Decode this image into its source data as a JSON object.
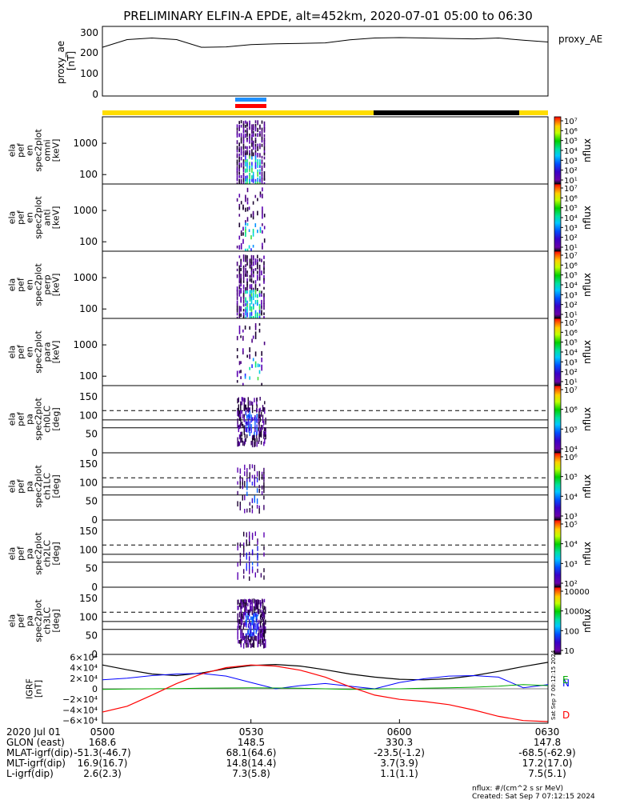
{
  "title": "PRELIMINARY ELFIN-A EPDE, alt=452km, 2020-07-01 05:00 to 06:30",
  "proxy_ae": {
    "ylabel": [
      "proxy_ae",
      "[nT]"
    ],
    "legend": "proxy_AE",
    "yticks": [
      "300",
      "200",
      "100",
      "0"
    ],
    "ylim": [
      0,
      300
    ],
    "x": [
      0,
      5,
      10,
      15,
      20,
      25,
      30,
      35,
      40,
      45,
      50,
      55,
      60,
      65,
      70,
      75,
      80,
      85,
      90
    ],
    "y": [
      220,
      255,
      262,
      255,
      220,
      222,
      232,
      236,
      238,
      240,
      254,
      262,
      264,
      262,
      260,
      258,
      262,
      252,
      244
    ]
  },
  "spectra": [
    {
      "ylabel": [
        "ela",
        "pef",
        "en",
        "spec2plot",
        "omni",
        "[keV]"
      ],
      "yticks": [
        "1000",
        "100"
      ],
      "ylim": [
        50,
        7000
      ],
      "scale": "log",
      "cblabel": "nflux",
      "cbticks": [
        "10⁷",
        "10⁶",
        "10⁵",
        "10⁴",
        "10³",
        "10²",
        "10¹"
      ]
    },
    {
      "ylabel": [
        "ela",
        "pef",
        "en",
        "spec2plot",
        "anti",
        "[keV]"
      ],
      "yticks": [
        "1000",
        "100"
      ],
      "ylim": [
        50,
        7000
      ],
      "scale": "log",
      "cblabel": "nflux",
      "cbticks": [
        "10⁷",
        "10⁶",
        "10⁵",
        "10⁴",
        "10³",
        "10²",
        "10¹"
      ]
    },
    {
      "ylabel": [
        "ela",
        "pef",
        "en",
        "spec2plot",
        "perp",
        "[keV]"
      ],
      "yticks": [
        "1000",
        "100"
      ],
      "ylim": [
        50,
        7000
      ],
      "scale": "log",
      "cblabel": "nflux",
      "cbticks": [
        "10⁷",
        "10⁶",
        "10⁵",
        "10⁴",
        "10³",
        "10²",
        "10¹"
      ]
    },
    {
      "ylabel": [
        "ela",
        "pef",
        "en",
        "spec2plot",
        "para",
        "[keV]"
      ],
      "yticks": [
        "1000",
        "100"
      ],
      "ylim": [
        50,
        7000
      ],
      "scale": "log",
      "cblabel": "nflux",
      "cbticks": [
        "10⁷",
        "10⁶",
        "10⁵",
        "10⁴",
        "10³",
        "10²",
        "10¹"
      ]
    }
  ],
  "pitch": [
    {
      "ylabel": [
        "ela",
        "pef",
        "pa",
        "spec2plot",
        "ch0LC",
        "[deg]"
      ],
      "yticks": [
        "150",
        "100",
        "50",
        "0"
      ],
      "cblabel": "nflux",
      "cbticks": [
        "10⁷",
        "10⁶",
        "10⁵",
        "10⁴"
      ]
    },
    {
      "ylabel": [
        "ela",
        "pef",
        "pa",
        "spec2plot",
        "ch1LC",
        "[deg]"
      ],
      "yticks": [
        "150",
        "100",
        "50",
        "0"
      ],
      "cblabel": "nflux",
      "cbticks": [
        "10⁶",
        "10⁵",
        "10⁴",
        "10³"
      ]
    },
    {
      "ylabel": [
        "ela",
        "pef",
        "pa",
        "spec2plot",
        "ch2LC",
        "[deg]"
      ],
      "yticks": [
        "150",
        "100",
        "50",
        "0"
      ],
      "cblabel": "nflux",
      "cbticks": [
        "10⁵",
        "10⁴",
        "10³",
        "10²"
      ]
    },
    {
      "ylabel": [
        "ela",
        "pef",
        "pa",
        "spec2plot",
        "ch3LC",
        "[deg]"
      ],
      "yticks": [
        "150",
        "100",
        "50",
        "0"
      ],
      "cblabel": "nflux",
      "cbticks": [
        "10000",
        "1000",
        "100",
        "10"
      ]
    }
  ],
  "bfield": {
    "ylabel": [
      "IGRF",
      "[nT]"
    ],
    "yticks": [
      "6×10⁴",
      "4×10⁴",
      "2×10⁴",
      "0",
      "−2×10⁴",
      "−4×10⁴",
      "−6×10⁴"
    ],
    "ylim": [
      -65000,
      65000
    ],
    "legend": [
      {
        "name": "N",
        "color": "#0000ff"
      },
      {
        "name": "E",
        "color": "#00aa00"
      },
      {
        "name": "D",
        "color": "#ff0000"
      }
    ],
    "side_text": "Sat Sep  7 00:12:15 2024",
    "x": [
      0,
      5,
      10,
      15,
      20,
      25,
      30,
      35,
      40,
      45,
      50,
      55,
      60,
      65,
      70,
      75,
      80,
      85,
      90
    ],
    "total": [
      45000,
      36000,
      28000,
      25000,
      30000,
      38000,
      44000,
      46000,
      43000,
      36000,
      28000,
      22000,
      18000,
      17000,
      19000,
      25000,
      33000,
      42000,
      50000
    ],
    "N": [
      17000,
      20000,
      25000,
      28000,
      29000,
      24000,
      12000,
      0,
      6000,
      10000,
      5000,
      0,
      12000,
      19000,
      24000,
      25000,
      22000,
      2000,
      8000
    ],
    "E": [
      -1000,
      -500,
      0,
      500,
      1000,
      1500,
      2000,
      1500,
      1000,
      0,
      -1000,
      -500,
      0,
      1000,
      2000,
      3000,
      5000,
      8000,
      6000
    ],
    "D": [
      -44000,
      -33000,
      -12000,
      10000,
      28000,
      40000,
      45000,
      43000,
      35000,
      22000,
      4000,
      -12000,
      -20000,
      -24000,
      -30000,
      -40000,
      -52000,
      -60000,
      -62000
    ]
  },
  "axis": {
    "xticks": [
      "0500",
      "0530",
      "0600",
      "0630"
    ],
    "rows": [
      {
        "label": "2020 Jul 01",
        "values": [
          "",
          "",
          "",
          ""
        ]
      },
      {
        "label": "GLON (east)",
        "values": [
          "168.6",
          "148.5",
          "330.3",
          "147.8"
        ]
      },
      {
        "label": "MLAT-igrf(dip)",
        "values": [
          "-51.3(-46.7)",
          "68.1(64.6)",
          "-23.5(-1.2)",
          "-68.5(-62.9)"
        ]
      },
      {
        "label": "MLT-igrf(dip)",
        "values": [
          "16.9(16.7)",
          "14.8(14.4)",
          "3.7(3.9)",
          "17.2(17.0)"
        ]
      },
      {
        "label": "L-igrf(dip)",
        "values": [
          "2.6(2.3)",
          "7.3(5.8)",
          "1.1(1.1)",
          "7.5(5.1)"
        ]
      }
    ]
  },
  "footer": [
    "nflux: #/(cm^2 s sr MeV)",
    "Created: Sat Sep  7 07:12:15 2024"
  ],
  "colors": {
    "bar_yellow": "#ffdd00",
    "bar_black": "#000000",
    "sci_blue": "#1e90ff",
    "sci_red": "#ff0000"
  }
}
